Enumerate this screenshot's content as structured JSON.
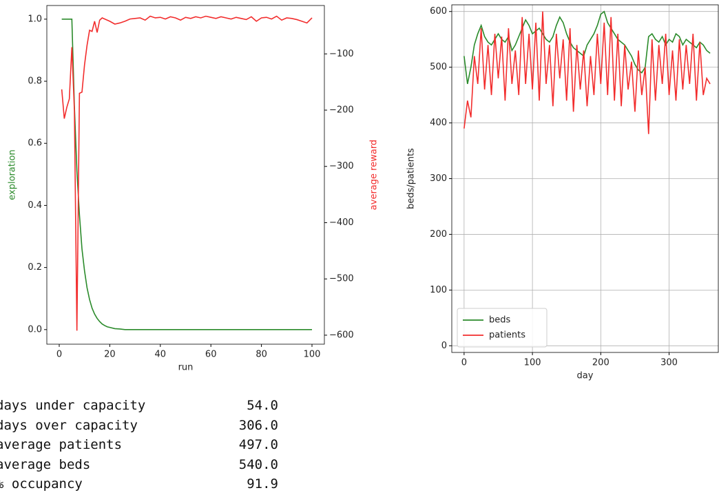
{
  "chart_data": [
    {
      "type": "line",
      "x_label": "run",
      "y_label": "exploration",
      "y2_label": "average reward",
      "xlim": [
        -4.9,
        104.9
      ],
      "xticks": [
        0,
        20,
        40,
        60,
        80,
        100
      ],
      "ylim": [
        -0.047,
        1.044
      ],
      "yticks": [
        {
          "value": 0,
          "label": "0.0"
        },
        0.2,
        0.4,
        0.6,
        0.8,
        {
          "value": 1,
          "label": "1.0"
        }
      ],
      "y2lim": [
        -616,
        -14
      ],
      "y2ticks": [
        {
          "value": -600,
          "label": "−600"
        },
        {
          "value": -500,
          "label": "−500"
        },
        {
          "value": -400,
          "label": "−400"
        },
        {
          "value": -300,
          "label": "−300"
        },
        {
          "value": -200,
          "label": "−200"
        },
        {
          "value": -100,
          "label": "−100"
        }
      ],
      "y_label_color": "#2a8a2a",
      "y2_label_color": "#f22c2c",
      "grid": false,
      "x": [
        1,
        2,
        3,
        4,
        5,
        6,
        7,
        8,
        9,
        10,
        11,
        12,
        13,
        14,
        15,
        16,
        17,
        18,
        19,
        20,
        22,
        24,
        26,
        28,
        30,
        32,
        34,
        36,
        38,
        40,
        42,
        44,
        46,
        48,
        50,
        52,
        54,
        56,
        58,
        60,
        62,
        64,
        66,
        68,
        70,
        72,
        74,
        76,
        78,
        80,
        82,
        84,
        86,
        88,
        90,
        92,
        94,
        96,
        98,
        100
      ],
      "series": [
        {
          "color": "#2a8a2a",
          "values": [
            1,
            1,
            1,
            1,
            1,
            0.72,
            0.51,
            0.37,
            0.26,
            0.19,
            0.135,
            0.097,
            0.069,
            0.05,
            0.036,
            0.026,
            0.018,
            0.013,
            0.009,
            0.007,
            0.003,
            0.002,
            0,
            0,
            0,
            0,
            0,
            0,
            0,
            0,
            0,
            0,
            0,
            0,
            0,
            0,
            0,
            0,
            0,
            0,
            0,
            0,
            0,
            0,
            0,
            0,
            0,
            0,
            0,
            0,
            0,
            0,
            0,
            0,
            0,
            0,
            0,
            0,
            0,
            0
          ]
        },
        {
          "color": "#f22c2c",
          "axis": "y2",
          "values": [
            -163,
            -215,
            -195,
            -180,
            -88,
            -200,
            -592,
            -170,
            -168,
            -120,
            -85,
            -58,
            -60,
            -42,
            -62,
            -40,
            -36,
            -38,
            -40,
            -42,
            -47,
            -45,
            -42,
            -38,
            -37,
            -36,
            -40,
            -33,
            -36,
            -35,
            -38,
            -34,
            -36,
            -40,
            -35,
            -37,
            -34,
            -36,
            -33,
            -35,
            -37,
            -34,
            -36,
            -38,
            -35,
            -37,
            -39,
            -34,
            -42,
            -36,
            -35,
            -38,
            -33,
            -40,
            -36,
            -37,
            -39,
            -42,
            -45,
            -36
          ]
        }
      ]
    },
    {
      "type": "line",
      "x_label": "day",
      "y_label": "beds/patients",
      "xlim": [
        -18,
        372
      ],
      "xticks": [
        0,
        100,
        200,
        300
      ],
      "ylim": [
        -12,
        612
      ],
      "yticks": [
        0,
        100,
        200,
        300,
        400,
        500,
        600
      ],
      "grid": true,
      "legend": "lower-left",
      "x": [
        0,
        5,
        10,
        15,
        20,
        25,
        30,
        35,
        40,
        45,
        50,
        55,
        60,
        65,
        70,
        75,
        80,
        85,
        90,
        95,
        100,
        105,
        110,
        115,
        120,
        125,
        130,
        135,
        140,
        145,
        150,
        155,
        160,
        165,
        170,
        175,
        180,
        185,
        190,
        195,
        200,
        205,
        210,
        215,
        220,
        225,
        230,
        235,
        240,
        245,
        250,
        255,
        260,
        265,
        270,
        275,
        280,
        285,
        290,
        295,
        300,
        305,
        310,
        315,
        320,
        325,
        330,
        335,
        340,
        345,
        350,
        355,
        360
      ],
      "series": [
        {
          "name": "beds",
          "color": "#2a8a2a",
          "values": [
            520,
            470,
            500,
            540,
            560,
            575,
            555,
            545,
            540,
            550,
            560,
            550,
            545,
            555,
            530,
            540,
            555,
            570,
            585,
            575,
            560,
            565,
            570,
            560,
            550,
            545,
            555,
            575,
            590,
            580,
            560,
            545,
            535,
            530,
            525,
            520,
            540,
            550,
            560,
            575,
            595,
            600,
            580,
            570,
            560,
            550,
            545,
            540,
            530,
            520,
            505,
            495,
            490,
            500,
            555,
            560,
            550,
            545,
            555,
            540,
            550,
            545,
            560,
            555,
            540,
            550,
            545,
            540,
            535,
            545,
            540,
            530,
            525
          ]
        },
        {
          "name": "patients",
          "color": "#f22c2c",
          "values": [
            390,
            440,
            410,
            520,
            470,
            570,
            460,
            540,
            450,
            560,
            480,
            555,
            440,
            570,
            470,
            530,
            450,
            590,
            470,
            560,
            460,
            580,
            440,
            600,
            470,
            540,
            430,
            560,
            480,
            550,
            440,
            570,
            420,
            540,
            460,
            530,
            430,
            520,
            450,
            560,
            470,
            580,
            450,
            590,
            440,
            560,
            430,
            540,
            460,
            510,
            420,
            530,
            450,
            500,
            380,
            550,
            440,
            540,
            470,
            560,
            450,
            530,
            440,
            550,
            460,
            540,
            470,
            560,
            440,
            545,
            450,
            480,
            470
          ]
        }
      ]
    }
  ],
  "table": {
    "rows": [
      [
        "days under capacity",
        "54.0"
      ],
      [
        "days over capacity",
        "306.0"
      ],
      [
        "average patients",
        "497.0"
      ],
      [
        "average beds",
        "540.0"
      ],
      [
        "% occupancy",
        "91.9"
      ]
    ]
  }
}
